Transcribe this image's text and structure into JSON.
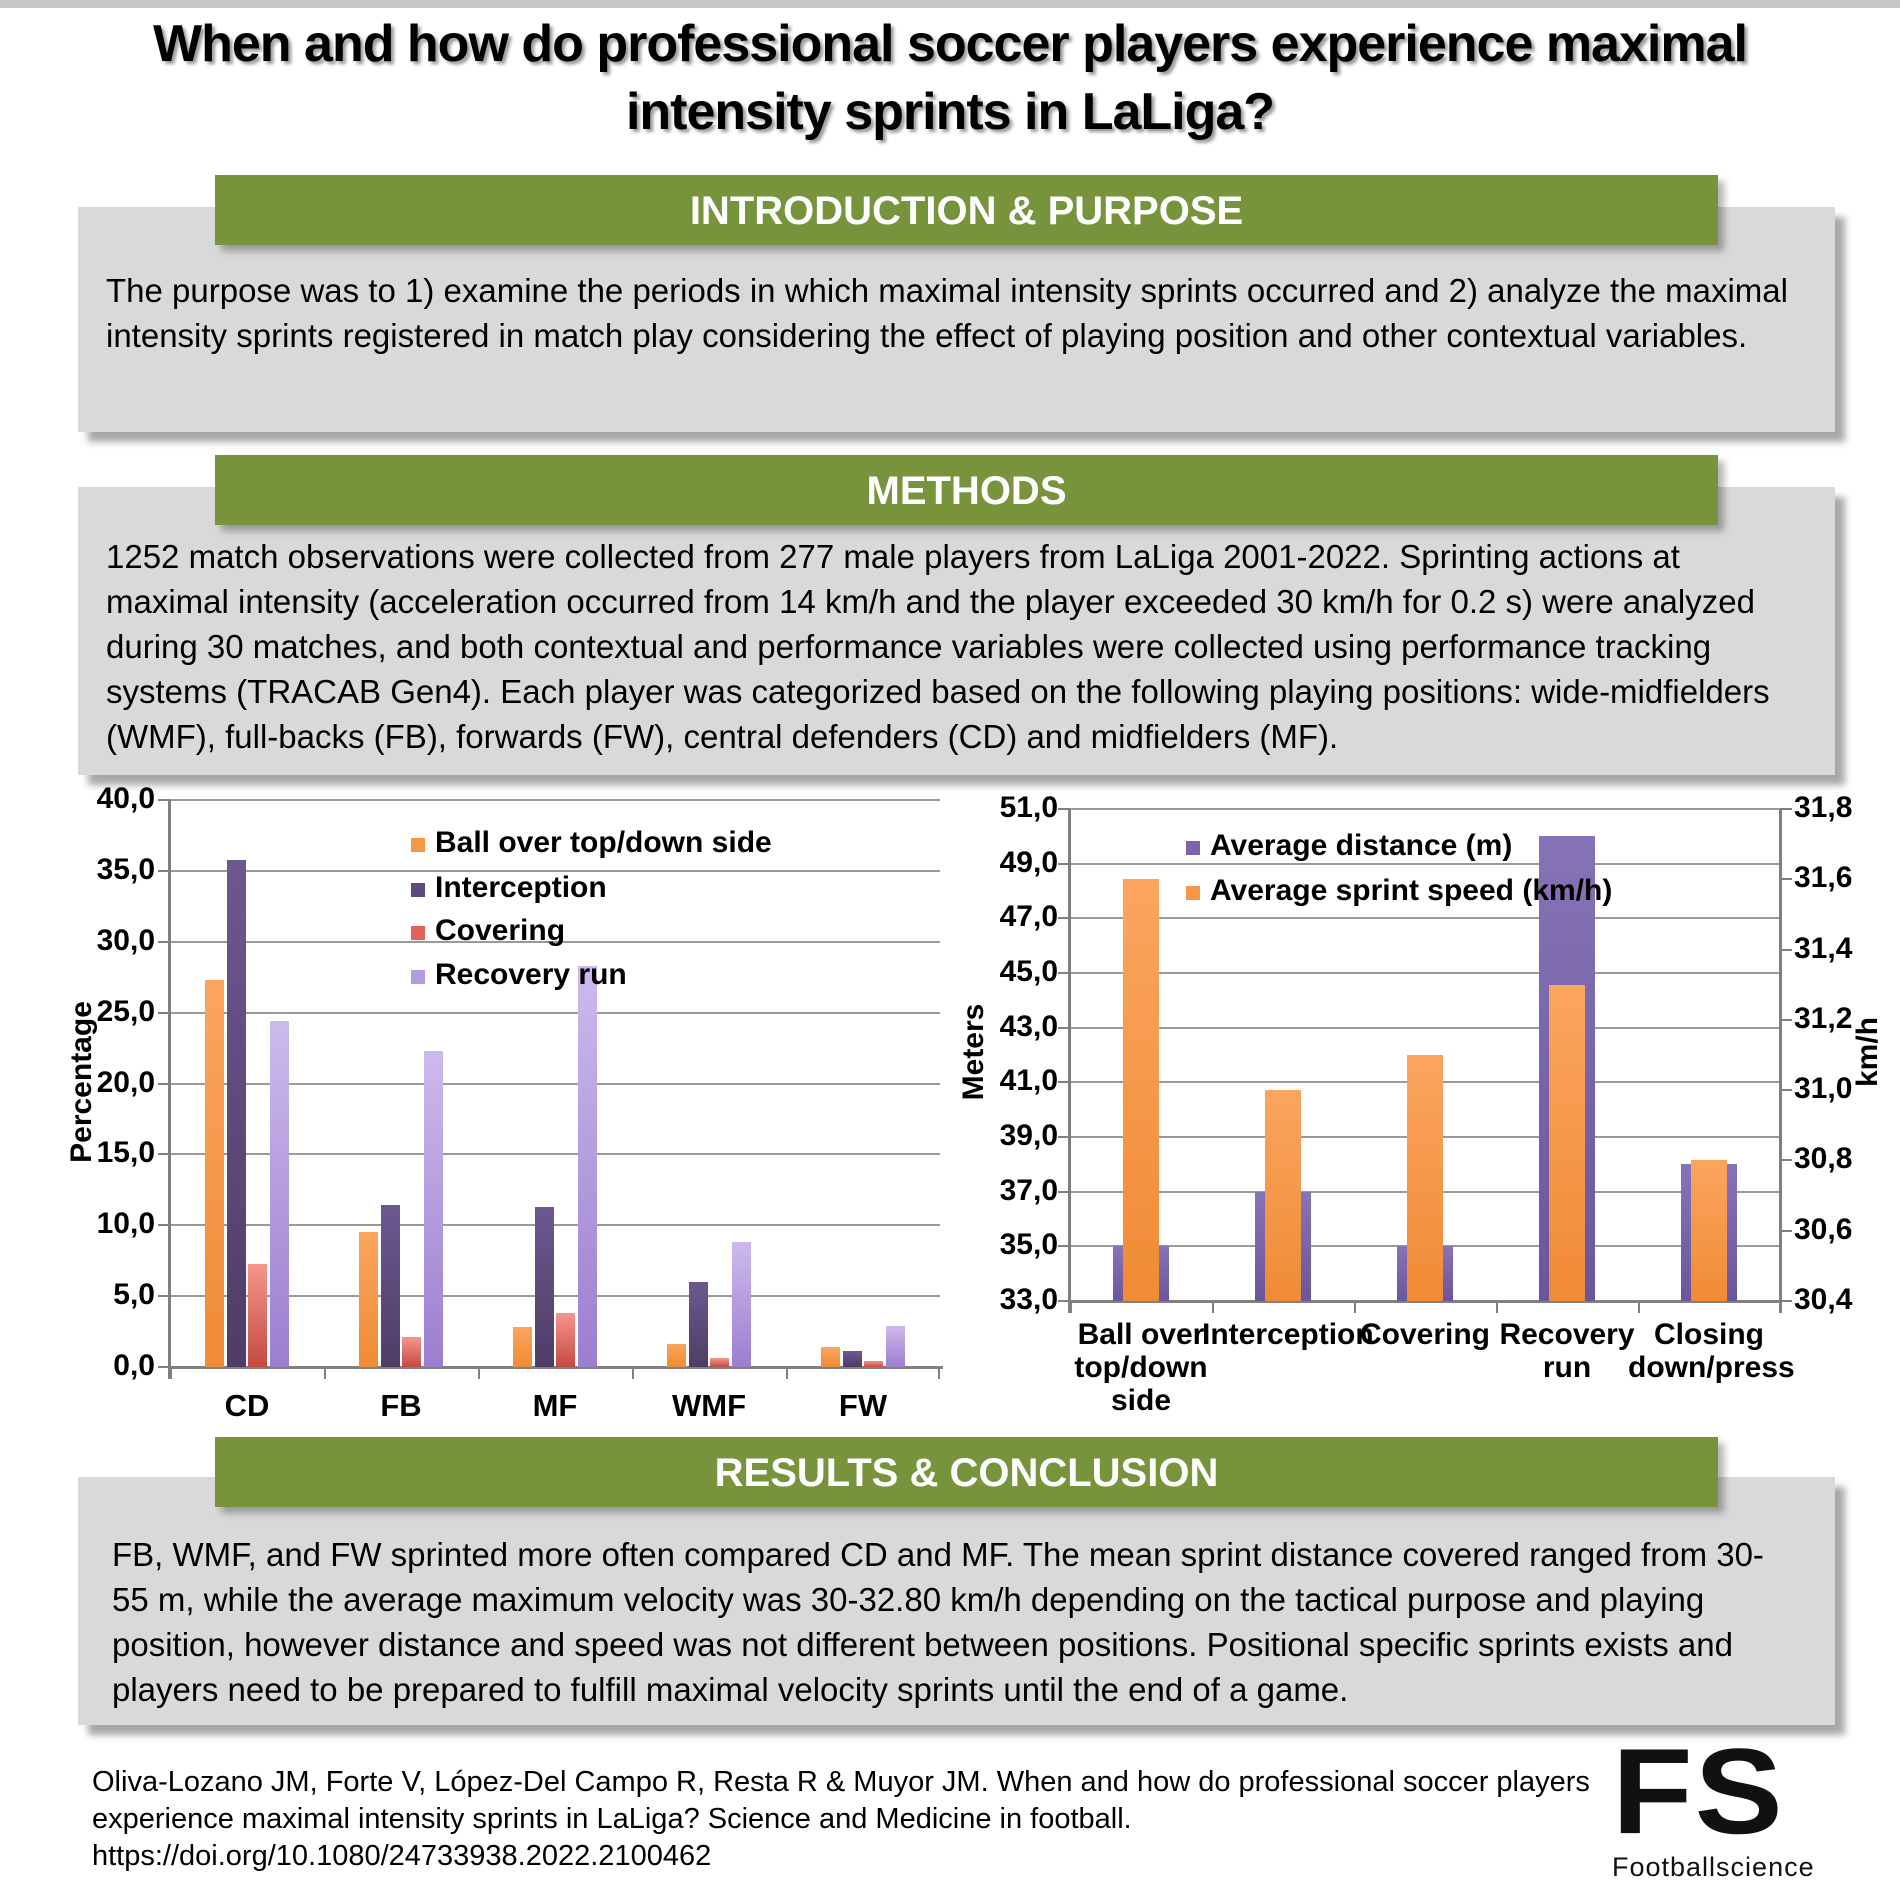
{
  "title": {
    "line1": "When and how do professional soccer players experience maximal",
    "line2": "intensity sprints in LaLiga?"
  },
  "sections": {
    "intro": {
      "header": "INTRODUCTION & PURPOSE",
      "body": "The purpose was to 1) examine the periods in which maximal intensity sprints occurred and 2) analyze the maximal intensity sprints registered in match play considering the effect of playing position and other contextual variables."
    },
    "methods": {
      "header": "METHODS",
      "body": "1252 match observations were collected from 277 male players from LaLiga 2001-2022. Sprinting actions at maximal intensity (acceleration occurred from 14 km/h and the player exceeded 30 km/h for 0.2 s) were analyzed during 30 matches, and both contextual and performance variables were collected using performance tracking systems (TRACAB Gen4). Each player was categorized based on the following playing positions: wide-midfielders (WMF), full-backs (FB), forwards (FW), central defenders (CD) and midfielders (MF)."
    },
    "results": {
      "header": "RESULTS & CONCLUSION",
      "body": "FB, WMF, and FW sprinted more often compared CD and MF. The mean sprint distance covered ranged from 30-55 m, while the average maximum velocity was 30-32.80 km/h depending on the tactical purpose and playing position, however distance and speed was not different between positions. Positional specific sprints exists and players need to be prepared to fulfill maximal velocity sprints until the end of a game."
    }
  },
  "citation": {
    "line1": "Oliva-Lozano JM, Forte V, López-Del Campo R, Resta R & Muyor JM. When and how do professional soccer players",
    "line2": "experience maximal intensity sprints in LaLiga? Science and Medicine in football.",
    "line3": "https://doi.org/10.1080/24733938.2022.2100462"
  },
  "logo": {
    "text": "FS",
    "subtext": "Footballscience"
  },
  "colors": {
    "header_green": "#77933C",
    "panel_grey": "#D9D9D9",
    "gridline": "#9a9a9a",
    "axis": "#808080"
  },
  "chart_data": [
    {
      "type": "bar",
      "title": "",
      "xlabel": "",
      "ylabel": "Percentage",
      "ylim": [
        0,
        40
      ],
      "ytick_step": 5,
      "grid": true,
      "legend_position": "inside-top",
      "categories": [
        "CD",
        "FB",
        "MF",
        "WMF",
        "FW"
      ],
      "series": [
        {
          "name": "Ball over top/down side",
          "color": "#F79646",
          "gradient": [
            "#FBA55F",
            "#F08B35"
          ],
          "values": [
            27.3,
            9.5,
            2.8,
            1.6,
            1.4
          ]
        },
        {
          "name": "Interception",
          "color": "#5E4A7B",
          "gradient": [
            "#6C5890",
            "#4F3D66"
          ],
          "values": [
            35.8,
            11.4,
            11.3,
            6.0,
            1.1
          ]
        },
        {
          "name": "Covering",
          "color": "#E0645C",
          "gradient": [
            "#F5968E",
            "#C54A40"
          ],
          "values": [
            7.3,
            2.1,
            3.8,
            0.6,
            0.4
          ]
        },
        {
          "name": "Recovery run",
          "color": "#B49BDF",
          "gradient": [
            "#CDBAEC",
            "#9C7ECF"
          ],
          "values": [
            24.4,
            22.3,
            28.3,
            8.8,
            2.9
          ]
        }
      ]
    },
    {
      "type": "bar-dual-axis",
      "grid": true,
      "legend_position": "inside-top",
      "categories": [
        "Ball over top/down side",
        "Interception",
        "Covering",
        "Recovery run",
        "Closing down/press"
      ],
      "category_lines": [
        [
          "Ball over",
          "top/down",
          "side"
        ],
        [
          "Interception"
        ],
        [
          "Covering"
        ],
        [
          "Recovery",
          "run"
        ],
        [
          "Closing",
          "down/press"
        ]
      ],
      "left_axis": {
        "label": "Meters",
        "min": 33.0,
        "max": 51.0,
        "step": 2.0
      },
      "right_axis": {
        "label": "km/h",
        "min": 30.4,
        "max": 31.8,
        "step": 0.2
      },
      "series": [
        {
          "name": "Average distance (m)",
          "axis": "left",
          "color": "#7A66AB",
          "gradient": [
            "#8774B8",
            "#69569B"
          ],
          "values": [
            35,
            37,
            35,
            50,
            38
          ]
        },
        {
          "name": "Average sprint speed (km/h)",
          "axis": "right",
          "color": "#F79646",
          "gradient": [
            "#FBA55F",
            "#F08B35"
          ],
          "values": [
            31.6,
            31.0,
            31.1,
            31.3,
            30.8
          ]
        }
      ]
    }
  ]
}
